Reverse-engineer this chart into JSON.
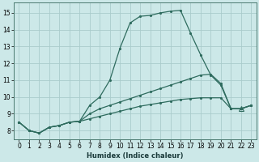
{
  "xlabel": "Humidex (Indice chaleur)",
  "ylabel": "",
  "bg_color": "#cce8e8",
  "grid_color": "#aacccc",
  "line_color": "#2e6b5e",
  "xlim": [
    -0.5,
    23.5
  ],
  "ylim": [
    7.5,
    15.6
  ],
  "xticks": [
    0,
    1,
    2,
    3,
    4,
    5,
    6,
    7,
    8,
    9,
    10,
    11,
    12,
    13,
    14,
    15,
    16,
    17,
    18,
    19,
    20,
    21,
    22,
    23
  ],
  "yticks": [
    8,
    9,
    10,
    11,
    12,
    13,
    14,
    15
  ],
  "line1_x": [
    0,
    1,
    2,
    3,
    4,
    5,
    6,
    7,
    8,
    9,
    10,
    11,
    12,
    13,
    14,
    15,
    16,
    17,
    18,
    19,
    20,
    21,
    22,
    23
  ],
  "line1_y": [
    8.5,
    8.0,
    7.85,
    8.2,
    8.3,
    8.5,
    8.55,
    9.5,
    10.0,
    11.0,
    12.9,
    14.4,
    14.8,
    14.85,
    15.0,
    15.1,
    15.15,
    13.8,
    12.5,
    11.3,
    10.7,
    9.3,
    9.3,
    9.5
  ],
  "line2_x": [
    0,
    1,
    2,
    3,
    4,
    5,
    6,
    7,
    8,
    9,
    10,
    11,
    12,
    13,
    14,
    15,
    16,
    17,
    18,
    19,
    20,
    21,
    22,
    23
  ],
  "line2_y": [
    8.5,
    8.0,
    7.85,
    8.2,
    8.3,
    8.5,
    8.55,
    9.0,
    9.3,
    9.5,
    9.7,
    9.9,
    10.1,
    10.3,
    10.5,
    10.7,
    10.9,
    11.1,
    11.3,
    11.35,
    10.8,
    9.3,
    9.3,
    9.5
  ],
  "line3_x": [
    0,
    1,
    2,
    3,
    4,
    5,
    6,
    7,
    8,
    9,
    10,
    11,
    12,
    13,
    14,
    15,
    16,
    17,
    18,
    19,
    20,
    21,
    22,
    23
  ],
  "line3_y": [
    8.5,
    8.0,
    7.85,
    8.2,
    8.3,
    8.5,
    8.55,
    8.7,
    8.85,
    9.0,
    9.15,
    9.3,
    9.45,
    9.55,
    9.65,
    9.75,
    9.85,
    9.9,
    9.95,
    9.95,
    9.95,
    9.3,
    9.3,
    9.5
  ],
  "triangle_x": 22,
  "triangle_y": 9.3,
  "xlabel_fontsize": 6,
  "xlabel_fontweight": "bold",
  "tick_fontsize": 5.5
}
